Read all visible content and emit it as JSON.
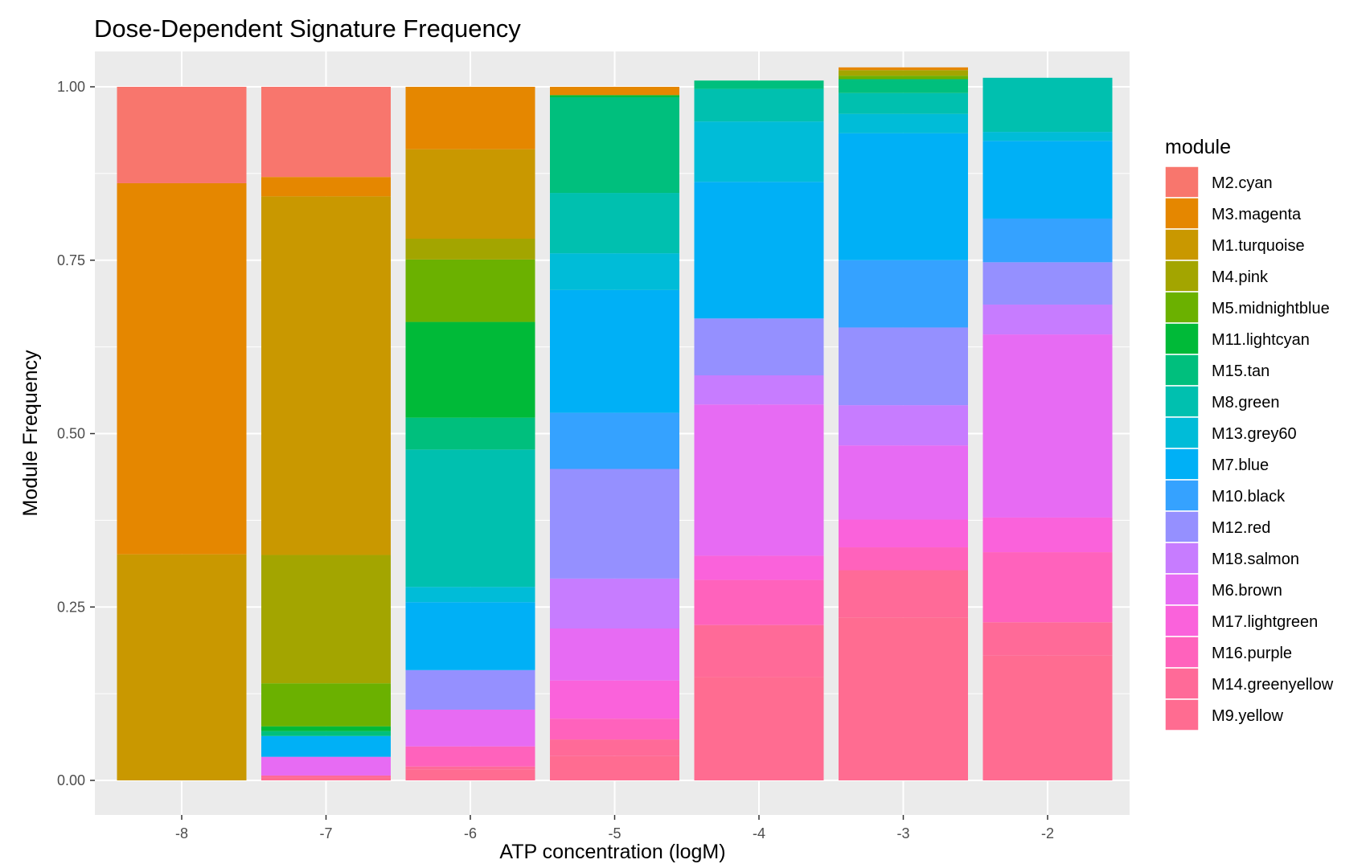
{
  "chart_data": {
    "type": "bar",
    "stacked": true,
    "title": "Dose-Dependent Signature Frequency",
    "xlabel": "ATP concentration (logM)",
    "ylabel": "Module Frequency",
    "ylim": [
      0,
      1
    ],
    "y_ticks": [
      "0.00",
      "0.25",
      "0.50",
      "0.75",
      "1.00"
    ],
    "grid": true,
    "legend_title": "module",
    "legend_position": "right",
    "categories": [
      "-8",
      "-7",
      "-6",
      "-5",
      "-4",
      "-3",
      "-2"
    ],
    "series": [
      {
        "name": "M2.cyan",
        "color": "#F8766D",
        "values": [
          0.139,
          0.13,
          0,
          0,
          0,
          0,
          0
        ]
      },
      {
        "name": "M3.magenta",
        "color": "#E58700",
        "values": [
          0.535,
          0.028,
          0.09,
          0.012,
          0,
          0.004,
          0
        ]
      },
      {
        "name": "M1.turquoise",
        "color": "#C99800",
        "values": [
          0.326,
          0.517,
          0.129,
          0,
          0,
          0,
          0
        ]
      },
      {
        "name": "M4.pink",
        "color": "#A3A500",
        "values": [
          0,
          0.185,
          0.03,
          0,
          0,
          0.008,
          0
        ]
      },
      {
        "name": "M5.midnightblue",
        "color": "#6BB100",
        "values": [
          0,
          0.062,
          0.09,
          0,
          0,
          0.005,
          0
        ]
      },
      {
        "name": "M11.lightcyan",
        "color": "#00BA38",
        "values": [
          0,
          0.007,
          0.138,
          0.003,
          0,
          0,
          0
        ]
      },
      {
        "name": "M15.tan",
        "color": "#00BF7D",
        "values": [
          0,
          0.007,
          0.046,
          0.138,
          0.012,
          0.02,
          0
        ]
      },
      {
        "name": "M8.green",
        "color": "#00C0AF",
        "values": [
          0,
          0,
          0.198,
          0.087,
          0.047,
          0.03,
          0.078
        ]
      },
      {
        "name": "M13.grey60",
        "color": "#00BCD8",
        "values": [
          0,
          0,
          0.022,
          0.053,
          0.087,
          0.028,
          0.013
        ]
      },
      {
        "name": "M7.blue",
        "color": "#00B0F6",
        "values": [
          0,
          0.03,
          0.098,
          0.177,
          0.197,
          0.183,
          0.112
        ]
      },
      {
        "name": "M10.black",
        "color": "#35A2FF",
        "values": [
          0,
          0,
          0,
          0.081,
          0,
          0.097,
          0.063
        ]
      },
      {
        "name": "M12.red",
        "color": "#9590FF",
        "values": [
          0,
          0,
          0.057,
          0.158,
          0.082,
          0.112,
          0.061
        ]
      },
      {
        "name": "M18.salmon",
        "color": "#C77CFF",
        "values": [
          0,
          0,
          0,
          0.072,
          0.042,
          0.058,
          0.043
        ]
      },
      {
        "name": "M6.brown",
        "color": "#E76BF3",
        "values": [
          0,
          0.027,
          0.053,
          0.075,
          0.218,
          0.107,
          0.264
        ]
      },
      {
        "name": "M17.lightgreen",
        "color": "#FA62DB",
        "values": [
          0,
          0,
          0,
          0.055,
          0.035,
          0.04,
          0.05
        ]
      },
      {
        "name": "M16.purple",
        "color": "#FF62BC",
        "values": [
          0,
          0,
          0.029,
          0.03,
          0.065,
          0.033,
          0.101
        ]
      },
      {
        "name": "M14.greenyellow",
        "color": "#FF6A98",
        "values": [
          0,
          0.003,
          0.004,
          0.024,
          0.075,
          0.068,
          0.048
        ]
      },
      {
        "name": "M9.yellow",
        "color": "#FF6C91",
        "values": [
          0,
          0.004,
          0.016,
          0.035,
          0.149,
          0.235,
          0.18
        ]
      }
    ]
  }
}
